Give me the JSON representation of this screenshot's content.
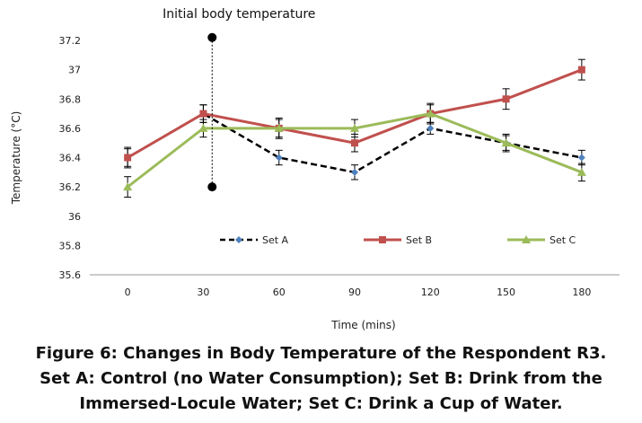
{
  "chart_data": {
    "type": "line",
    "xlabel": "Time (mins)",
    "ylabel": "Temperature (°C)",
    "x": [
      0,
      30,
      60,
      90,
      120,
      150,
      180
    ],
    "ylim": [
      35.6,
      37.2
    ],
    "yticks": [
      "35.6",
      "35.8",
      "36",
      "36.2",
      "36.4",
      "36.6",
      "36.8",
      "37",
      "37.2"
    ],
    "grid": false,
    "legend_position": "inside-bottom",
    "series": [
      {
        "name": "Set A",
        "color": "#000000",
        "marker_color": "#4f81bd",
        "line_style": "dashed",
        "marker": "diamond",
        "values": [
          36.4,
          36.7,
          36.4,
          36.3,
          36.6,
          36.5,
          36.4
        ],
        "error": [
          0.06,
          0.06,
          0.05,
          0.05,
          0.04,
          0.05,
          0.05
        ]
      },
      {
        "name": "Set B",
        "color": "#c0504d",
        "line_style": "solid",
        "marker": "square",
        "values": [
          36.4,
          36.7,
          36.6,
          36.5,
          36.7,
          36.8,
          37.0
        ],
        "error": [
          0.07,
          0.06,
          0.07,
          0.06,
          0.07,
          0.07,
          0.07
        ]
      },
      {
        "name": "Set C",
        "color": "#9bbb59",
        "line_style": "solid",
        "marker": "triangle",
        "values": [
          36.2,
          36.6,
          36.6,
          36.6,
          36.7,
          36.5,
          36.3
        ],
        "error": [
          0.07,
          0.06,
          0.06,
          0.06,
          0.06,
          0.06,
          0.06
        ]
      }
    ],
    "annotation": {
      "text": "Initial body temperature",
      "x": 33.5,
      "y_top": 37.22,
      "y_bottom": 36.2
    }
  },
  "caption": {
    "line1": "Figure 6: Changes in Body Temperature of the Respondent R3.",
    "line2": "Set A: Control (no Water Consumption); Set B: Drink from the",
    "line3": "Immersed-Locule Water; Set C: Drink a Cup of Water."
  }
}
